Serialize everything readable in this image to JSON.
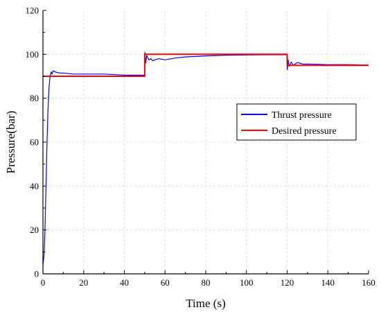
{
  "chart_data": {
    "type": "line",
    "title": "",
    "xlabel": "Time (s)",
    "ylabel": "Pressure(bar)",
    "xlim": [
      0,
      160
    ],
    "ylim": [
      0,
      120
    ],
    "x_ticks": [
      "0",
      "20",
      "40",
      "60",
      "80",
      "100",
      "120",
      "140",
      "160"
    ],
    "y_ticks": [
      "0",
      "20",
      "40",
      "60",
      "80",
      "100",
      "120"
    ],
    "grid": true,
    "legend_position": "right",
    "series": [
      {
        "name": "Thrust pressure",
        "color": "#0000ff",
        "x": [
          0,
          0.5,
          1,
          1.5,
          2,
          2.5,
          3,
          3.5,
          4,
          4.5,
          5,
          6,
          8,
          10,
          15,
          20,
          30,
          40,
          49.9,
          50.1,
          50.5,
          51,
          52,
          53,
          54,
          55,
          57,
          60,
          65,
          70,
          80,
          90,
          100,
          110,
          119.9,
          120.1,
          120.5,
          121,
          122,
          123,
          125,
          128,
          130,
          140,
          150,
          160
        ],
        "y": [
          4,
          8,
          20,
          40,
          60,
          75,
          85,
          90,
          92,
          91,
          92.5,
          92,
          91.5,
          91.5,
          91,
          91,
          91,
          90.5,
          90.5,
          101,
          96,
          99.5,
          97.5,
          98,
          97,
          97.5,
          98,
          97.5,
          98.3,
          98.8,
          99.3,
          99.6,
          99.7,
          99.8,
          99.8,
          93,
          97.5,
          94.5,
          96.5,
          95,
          96.3,
          95.5,
          95.6,
          95.3,
          95.3,
          95.1
        ]
      },
      {
        "name": "Desired pressure",
        "color": "#ff0000",
        "x": [
          0,
          50,
          50,
          120,
          120,
          160
        ],
        "y": [
          90,
          90,
          100,
          100,
          95,
          95
        ]
      }
    ]
  }
}
